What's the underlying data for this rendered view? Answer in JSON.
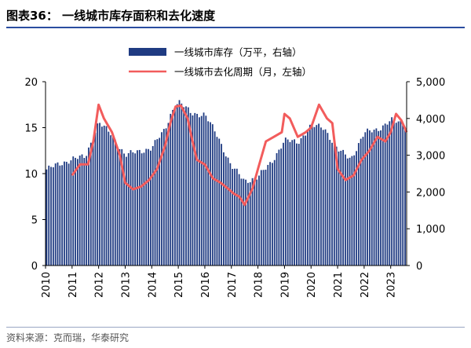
{
  "title": "图表36：  一线城市库存面积和去化速度",
  "source": "资料来源：克而瑞，华泰研究",
  "chart_data": {
    "type": "bar+line",
    "title": "图表36：  一线城市库存面积和去化速度",
    "colors": {
      "bars": "#1f3b82",
      "line": "#f25c5c"
    },
    "legend": [
      {
        "label": "一线城市库存（万平，右轴）",
        "kind": "bar"
      },
      {
        "label": "一线城市去化周期（月，左轴）",
        "kind": "line"
      }
    ],
    "legend_position": "top",
    "grid": false,
    "x_ticks": [
      "2010",
      "2011",
      "2012",
      "2013",
      "2014",
      "2015",
      "2016",
      "2017",
      "2018",
      "2019",
      "2020",
      "2021",
      "2022",
      "2023"
    ],
    "x_range": [
      2010.0,
      2023.6
    ],
    "left_axis": {
      "range": [
        0,
        20
      ],
      "ticks": [
        "0",
        "5",
        "10",
        "15",
        "20"
      ]
    },
    "right_axis": {
      "range": [
        0,
        5000
      ],
      "ticks": [
        "0",
        "1,000",
        "2,000",
        "3,000",
        "4,000",
        "5,000"
      ]
    },
    "series": [
      {
        "name": "一线城市库存（万平，右轴）",
        "axis": "right",
        "type": "bar",
        "x": [
          2010.0,
          2010.5,
          2011.0,
          2011.5,
          2012.0,
          2012.5,
          2013.0,
          2013.5,
          2014.0,
          2014.5,
          2014.75,
          2015.0,
          2015.5,
          2016.0,
          2016.5,
          2017.0,
          2017.5,
          2018.0,
          2018.5,
          2019.0,
          2019.5,
          2020.0,
          2020.5,
          2021.0,
          2021.5,
          2022.0,
          2022.5,
          2023.0,
          2023.5
        ],
        "values": [
          2600,
          2750,
          2900,
          2950,
          3900,
          3550,
          3000,
          3100,
          3200,
          3700,
          4200,
          4450,
          4150,
          4100,
          3500,
          2700,
          2300,
          2400,
          2800,
          3400,
          3350,
          3800,
          3750,
          3150,
          2900,
          3600,
          3700,
          3950,
          3850
        ]
      },
      {
        "name": "一线城市去化周期（月，左轴）",
        "axis": "left",
        "type": "line",
        "x": [
          2011.0,
          2011.3,
          2011.6,
          2011.8,
          2012.0,
          2012.2,
          2012.5,
          2012.8,
          2013.0,
          2013.3,
          2013.6,
          2013.9,
          2014.2,
          2014.5,
          2014.7,
          2014.9,
          2015.1,
          2015.35,
          2015.5,
          2015.7,
          2016.0,
          2016.3,
          2016.6,
          2016.9,
          2017.1,
          2017.3,
          2017.5,
          2017.8,
          2018.0,
          2018.3,
          2018.6,
          2018.9,
          2019.0,
          2019.2,
          2019.5,
          2019.8,
          2020.0,
          2020.3,
          2020.6,
          2020.8,
          2021.0,
          2021.3,
          2021.6,
          2021.9,
          2022.2,
          2022.5,
          2022.8,
          2023.0,
          2023.2,
          2023.4,
          2023.6
        ],
        "values": [
          9.8,
          11.0,
          11.0,
          13.5,
          17.5,
          16.0,
          14.5,
          12.0,
          9.0,
          8.3,
          8.6,
          9.3,
          10.5,
          13.0,
          15.5,
          17.3,
          17.4,
          16.0,
          14.0,
          11.5,
          11.0,
          9.5,
          9.0,
          8.3,
          7.8,
          7.5,
          6.6,
          8.4,
          10.5,
          13.5,
          14.0,
          14.5,
          16.5,
          16.0,
          14.0,
          14.5,
          15.0,
          17.5,
          16.0,
          15.5,
          10.5,
          9.3,
          9.8,
          11.5,
          12.5,
          14.0,
          13.5,
          14.5,
          16.5,
          15.8,
          14.5
        ]
      }
    ]
  }
}
